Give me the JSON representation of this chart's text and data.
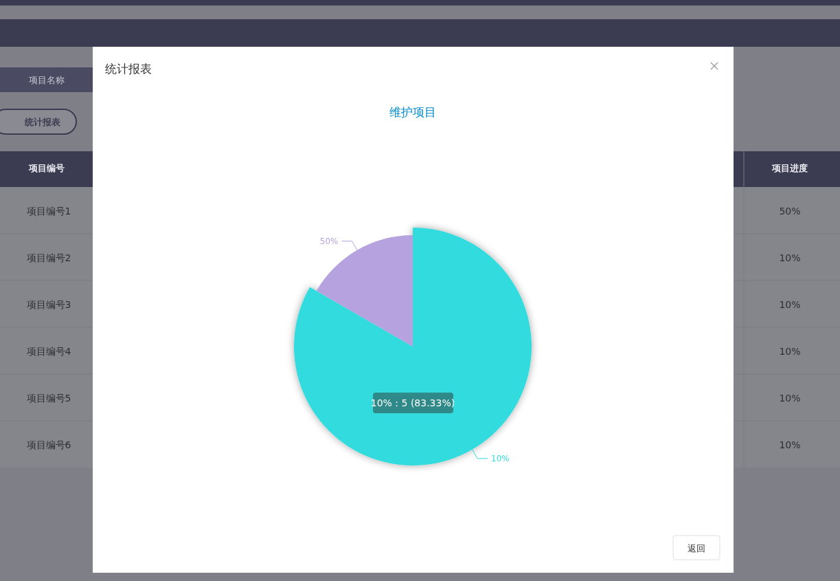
{
  "chart_data": {
    "type": "pie",
    "title": "维护项目",
    "categories": [
      "10%",
      "50%"
    ],
    "values": [
      83.33,
      16.67
    ],
    "colors": [
      "#33dbdd",
      "#b6a2de"
    ],
    "annotations": [
      "统计报表",
      "10% : 5 (83.33%)",
      "返回",
      "项目名称",
      "统计报表",
      "项目编号",
      "项目进度",
      "项目编号1",
      "项目编号2",
      "项目编号3",
      "项目编号4",
      "项目编号5",
      "项目编号6",
      "50%",
      "10%",
      "10%",
      "10%",
      "10%",
      "10%"
    ]
  }
}
